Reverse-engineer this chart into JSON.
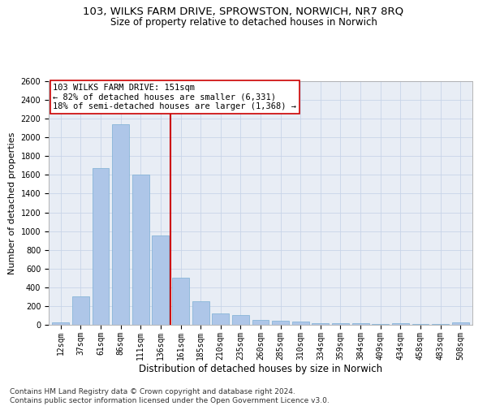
{
  "title_line1": "103, WILKS FARM DRIVE, SPROWSTON, NORWICH, NR7 8RQ",
  "title_line2": "Size of property relative to detached houses in Norwich",
  "xlabel": "Distribution of detached houses by size in Norwich",
  "ylabel": "Number of detached properties",
  "categories": [
    "12sqm",
    "37sqm",
    "61sqm",
    "86sqm",
    "111sqm",
    "136sqm",
    "161sqm",
    "185sqm",
    "210sqm",
    "235sqm",
    "260sqm",
    "285sqm",
    "310sqm",
    "334sqm",
    "359sqm",
    "384sqm",
    "409sqm",
    "434sqm",
    "458sqm",
    "483sqm",
    "508sqm"
  ],
  "values": [
    25,
    300,
    1670,
    2140,
    1600,
    950,
    500,
    250,
    120,
    100,
    50,
    40,
    35,
    20,
    20,
    20,
    5,
    20,
    5,
    5,
    25
  ],
  "bar_color": "#aec6e8",
  "bar_edge_color": "#7bafd4",
  "vline_x_index": 5.5,
  "vline_color": "#cc0000",
  "annotation_text": "103 WILKS FARM DRIVE: 151sqm\n← 82% of detached houses are smaller (6,331)\n18% of semi-detached houses are larger (1,368) →",
  "annotation_box_color": "#cc0000",
  "ylim": [
    0,
    2600
  ],
  "yticks": [
    0,
    200,
    400,
    600,
    800,
    1000,
    1200,
    1400,
    1600,
    1800,
    2000,
    2200,
    2400,
    2600
  ],
  "grid_color": "#c8d4e8",
  "background_color": "#e8edf5",
  "footer_line1": "Contains HM Land Registry data © Crown copyright and database right 2024.",
  "footer_line2": "Contains public sector information licensed under the Open Government Licence v3.0.",
  "title_fontsize": 9.5,
  "subtitle_fontsize": 8.5,
  "axis_label_fontsize": 8,
  "tick_fontsize": 7,
  "annotation_fontsize": 7.5,
  "footer_fontsize": 6.5
}
